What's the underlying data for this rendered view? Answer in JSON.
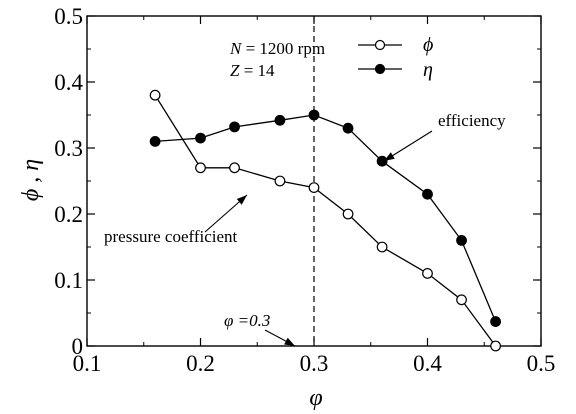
{
  "chart_data": {
    "type": "line",
    "xlabel": "φ",
    "ylabel": "ϕ , η",
    "xlim": [
      0.1,
      0.5
    ],
    "ylim": [
      0,
      0.5
    ],
    "xticks": [
      0.1,
      0.2,
      0.3,
      0.4,
      0.5
    ],
    "yticks": [
      0,
      0.1,
      0.2,
      0.3,
      0.4,
      0.5
    ],
    "xtick_labels": [
      "0.1",
      "0.2",
      "0.3",
      "0.4",
      "0.5"
    ],
    "ytick_labels": [
      "0",
      "0.1",
      "0.2",
      "0.3",
      "0.4",
      "0.5"
    ],
    "grid": false,
    "legend_position": "top-center",
    "series": [
      {
        "name": "ϕ",
        "marker": "open-circle",
        "x": [
          0.16,
          0.2,
          0.23,
          0.27,
          0.3,
          0.33,
          0.36,
          0.4,
          0.43,
          0.46
        ],
        "values": [
          0.38,
          0.27,
          0.27,
          0.25,
          0.24,
          0.2,
          0.15,
          0.11,
          0.07,
          0.0
        ]
      },
      {
        "name": "η",
        "marker": "filled-circle",
        "x": [
          0.16,
          0.2,
          0.23,
          0.27,
          0.3,
          0.33,
          0.36,
          0.4,
          0.43,
          0.46
        ],
        "values": [
          0.31,
          0.315,
          0.332,
          0.342,
          0.35,
          0.33,
          0.28,
          0.23,
          0.16,
          0.037
        ]
      }
    ],
    "reference_line": {
      "x": 0.3,
      "style": "dashed",
      "label": "φ =0.3"
    },
    "conditions": {
      "line1_var": "N",
      "line1_rest": " = 1200 rpm",
      "line2_var": "Z",
      "line2_rest": " = 14"
    },
    "annotations": {
      "efficiency": "efficiency",
      "pressure": "pressure coefficient"
    }
  }
}
